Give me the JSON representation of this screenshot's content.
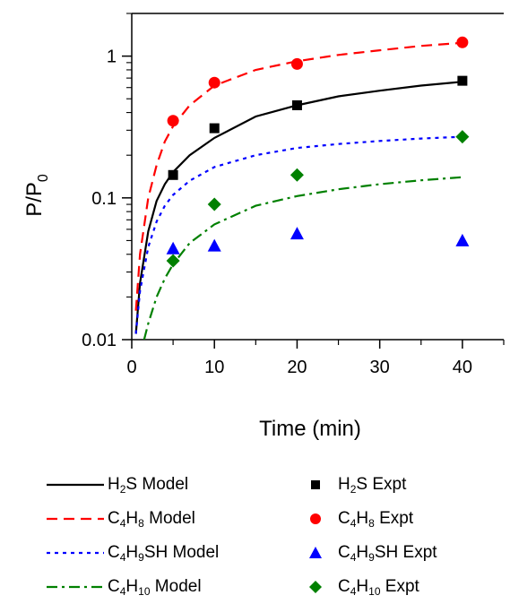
{
  "chart_data": {
    "type": "scatter",
    "xlabel": "Time (min)",
    "ylabel": "P/P",
    "ylabel_sub": "0",
    "xlim": [
      0,
      45
    ],
    "ylim": [
      0.01,
      2
    ],
    "yscale": "log",
    "xticks": [
      "0",
      "10",
      "20",
      "30",
      "40"
    ],
    "yticks": [
      "0.01",
      "0.1",
      "1"
    ],
    "series": [
      {
        "kind": "model",
        "color": "#000000",
        "dash": "solid",
        "label_pre": "H",
        "label_sub": "2",
        "label_post": "S Model",
        "x": [
          0.5,
          1,
          2,
          3,
          4,
          5,
          7,
          10,
          15,
          20,
          25,
          30,
          35,
          40
        ],
        "y": [
          0.011,
          0.025,
          0.058,
          0.095,
          0.125,
          0.152,
          0.2,
          0.265,
          0.375,
          0.45,
          0.52,
          0.57,
          0.62,
          0.66
        ]
      },
      {
        "kind": "model",
        "color": "#ff0000",
        "dash": "long-dash",
        "label_pre": "C",
        "label_sub": "4",
        "label_post": "H",
        "label_sub2": "8",
        "label_post2": " Model",
        "x": [
          0.5,
          1,
          2,
          3,
          4,
          5,
          7,
          10,
          15,
          20,
          25,
          30,
          35,
          40
        ],
        "y": [
          0.016,
          0.04,
          0.1,
          0.17,
          0.25,
          0.32,
          0.45,
          0.62,
          0.8,
          0.92,
          1.02,
          1.1,
          1.18,
          1.24
        ]
      },
      {
        "kind": "model",
        "color": "#0000ff",
        "dash": "dot",
        "label_pre": "C",
        "label_sub": "4",
        "label_post": "H",
        "label_sub2": "9",
        "label_post2": "SH Model",
        "x": [
          0.5,
          1,
          2,
          3,
          4,
          5,
          7,
          10,
          15,
          20,
          25,
          30,
          35,
          40
        ],
        "y": [
          0.011,
          0.022,
          0.045,
          0.068,
          0.088,
          0.105,
          0.132,
          0.165,
          0.2,
          0.225,
          0.24,
          0.252,
          0.262,
          0.27
        ]
      },
      {
        "kind": "model",
        "color": "#008000",
        "dash": "dash-dot",
        "label_pre": "C",
        "label_sub": "4",
        "label_post": "H",
        "label_sub2": "10",
        "label_post2": " Model",
        "x": [
          1.5,
          2,
          3,
          4,
          5,
          7,
          10,
          15,
          20,
          25,
          30,
          35,
          40
        ],
        "y": [
          0.01,
          0.013,
          0.02,
          0.027,
          0.034,
          0.048,
          0.065,
          0.088,
          0.103,
          0.115,
          0.125,
          0.133,
          0.14
        ]
      },
      {
        "kind": "expt",
        "color": "#000000",
        "marker": "square",
        "label_pre": "H",
        "label_sub": "2",
        "label_post": "S Expt",
        "x": [
          5,
          10,
          20,
          40
        ],
        "y": [
          0.145,
          0.31,
          0.45,
          0.67
        ]
      },
      {
        "kind": "expt",
        "color": "#ff0000",
        "marker": "circle",
        "label_pre": "C",
        "label_sub": "4",
        "label_post": "H",
        "label_sub2": "8",
        "label_post2": " Expt",
        "x": [
          5,
          10,
          20,
          40
        ],
        "y": [
          0.35,
          0.65,
          0.88,
          1.25
        ]
      },
      {
        "kind": "expt",
        "color": "#0000ff",
        "marker": "triangle",
        "label_pre": "C",
        "label_sub": "4",
        "label_post": "H",
        "label_sub2": "9",
        "label_post2": "SH Expt",
        "x": [
          5,
          10,
          20,
          40
        ],
        "y": [
          0.044,
          0.046,
          0.056,
          0.05
        ]
      },
      {
        "kind": "expt",
        "color": "#008000",
        "marker": "diamond",
        "label_pre": "C",
        "label_sub": "4",
        "label_post": "H",
        "label_sub2": "10",
        "label_post2": " Expt",
        "x": [
          5,
          10,
          20,
          40
        ],
        "y": [
          0.036,
          0.09,
          0.145,
          0.27
        ]
      }
    ],
    "legend_position": "bottom",
    "grid": false
  }
}
